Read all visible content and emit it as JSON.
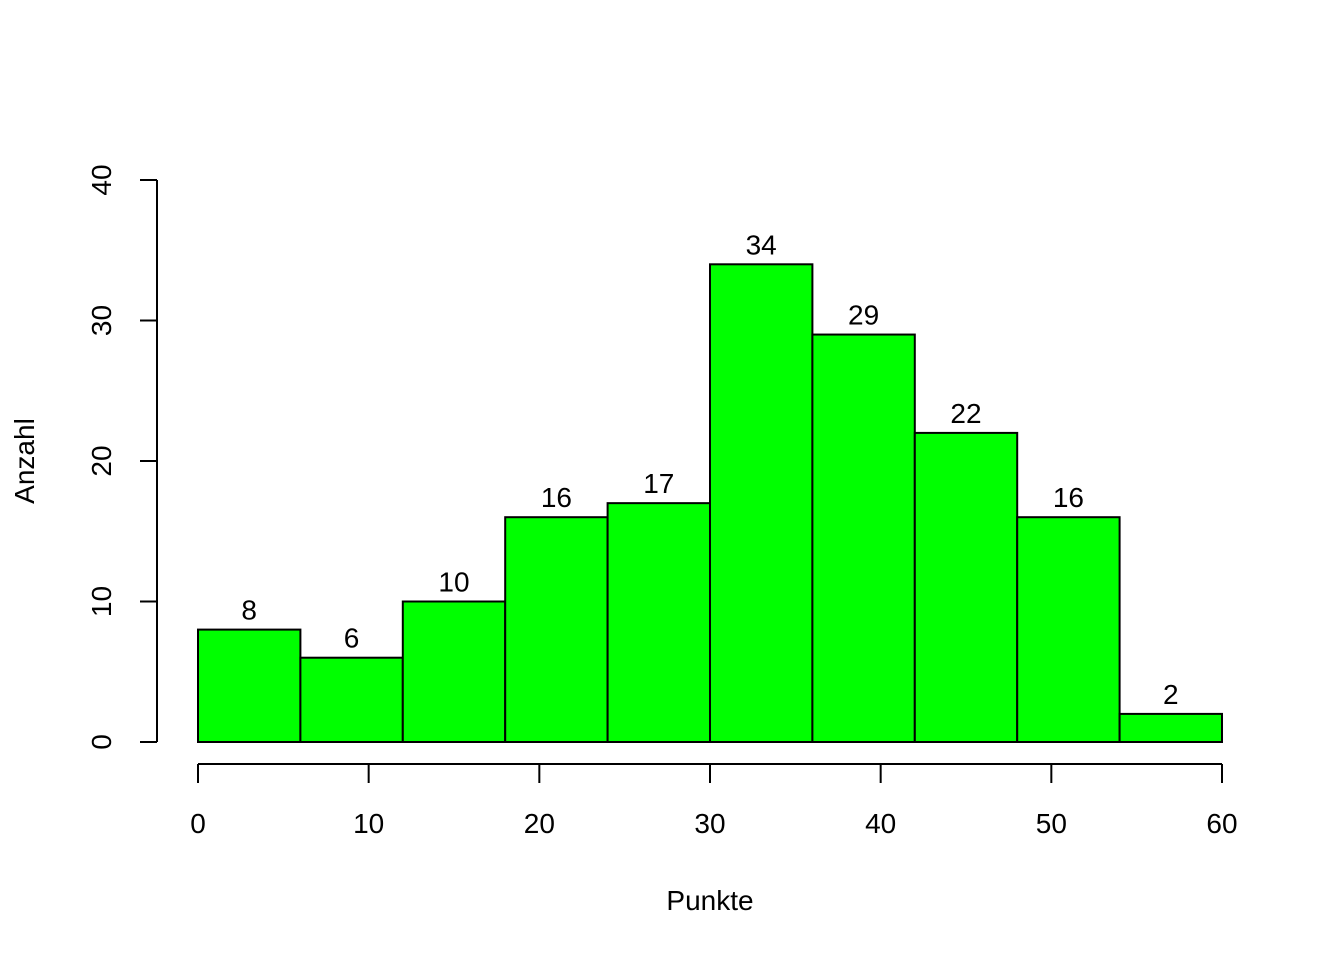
{
  "chart_data": {
    "type": "bar",
    "subtype": "histogram",
    "bins": [
      {
        "from": 0,
        "to": 6,
        "count": 8
      },
      {
        "from": 6,
        "to": 12,
        "count": 6
      },
      {
        "from": 12,
        "to": 18,
        "count": 10
      },
      {
        "from": 18,
        "to": 24,
        "count": 16
      },
      {
        "from": 24,
        "to": 30,
        "count": 17
      },
      {
        "from": 30,
        "to": 36,
        "count": 34
      },
      {
        "from": 36,
        "to": 42,
        "count": 29
      },
      {
        "from": 42,
        "to": 48,
        "count": 22
      },
      {
        "from": 48,
        "to": 54,
        "count": 16
      },
      {
        "from": 54,
        "to": 60,
        "count": 2
      }
    ],
    "title": "",
    "xlabel": "Punkte",
    "ylabel": "Anzahl",
    "xlim": [
      0,
      60
    ],
    "ylim": [
      0,
      40
    ],
    "xticks": [
      "0",
      "10",
      "20",
      "30",
      "40",
      "50",
      "60"
    ],
    "yticks": [
      "0",
      "10",
      "20",
      "30",
      "40"
    ],
    "bar_color": "#00ff00",
    "bar_border_color": "#000000",
    "data_labels": true,
    "grid": false,
    "legend": "none"
  }
}
